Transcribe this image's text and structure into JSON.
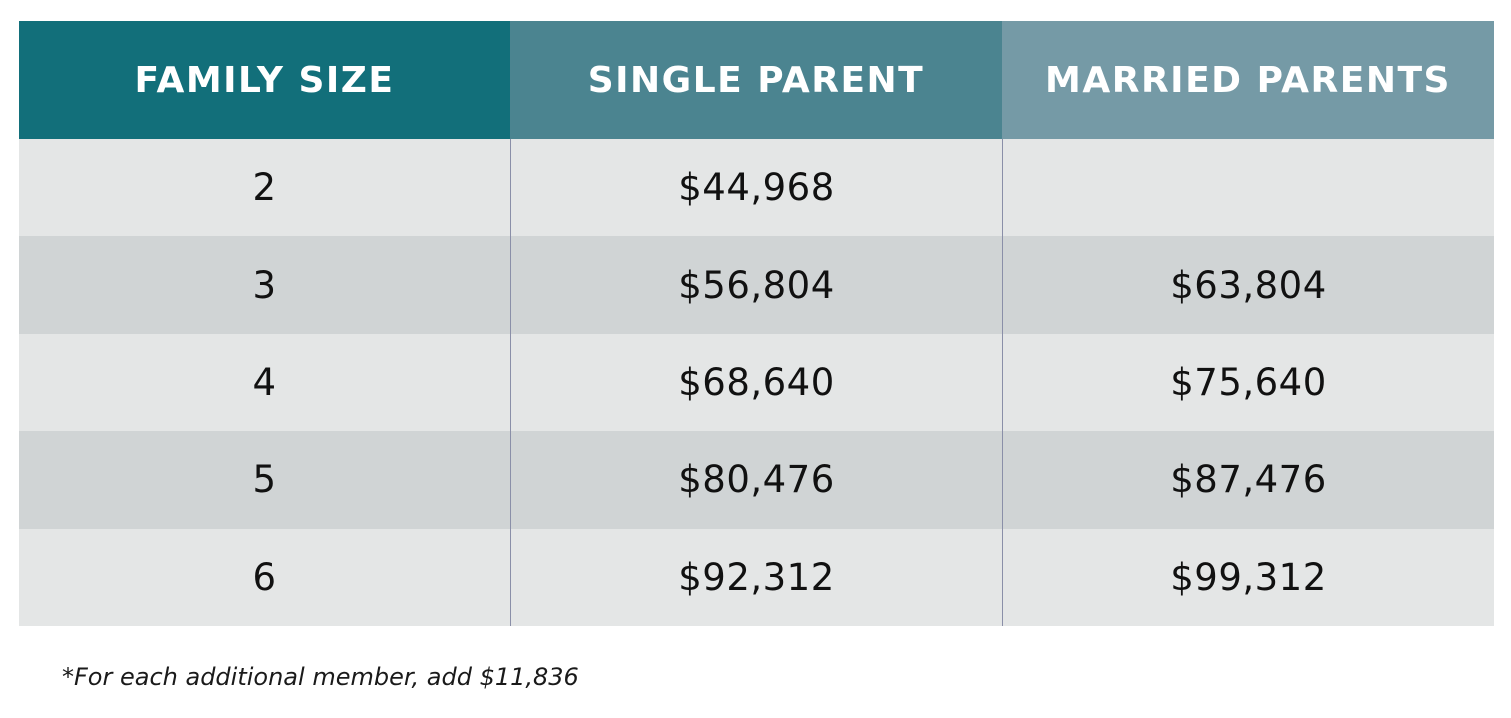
{
  "table": {
    "headers": [
      "FAMILY SIZE",
      "SINGLE PARENT",
      "MARRIED PARENTS"
    ],
    "rows": [
      {
        "family_size": "2",
        "single_parent": "$44,968",
        "married_parents": ""
      },
      {
        "family_size": "3",
        "single_parent": "$56,804",
        "married_parents": "$63,804"
      },
      {
        "family_size": "4",
        "single_parent": "$68,640",
        "married_parents": "$75,640"
      },
      {
        "family_size": "5",
        "single_parent": "$80,476",
        "married_parents": "$87,476"
      },
      {
        "family_size": "6",
        "single_parent": "$92,312",
        "married_parents": "$99,312"
      }
    ]
  },
  "footnote": "*For each additional member, add $11,836",
  "colors": {
    "header_col_1": "#126f7a",
    "header_col_2": "#4b8490",
    "header_col_3": "#759aa6",
    "row_light": "#e4e6e6",
    "row_dark": "#d0d4d5"
  }
}
